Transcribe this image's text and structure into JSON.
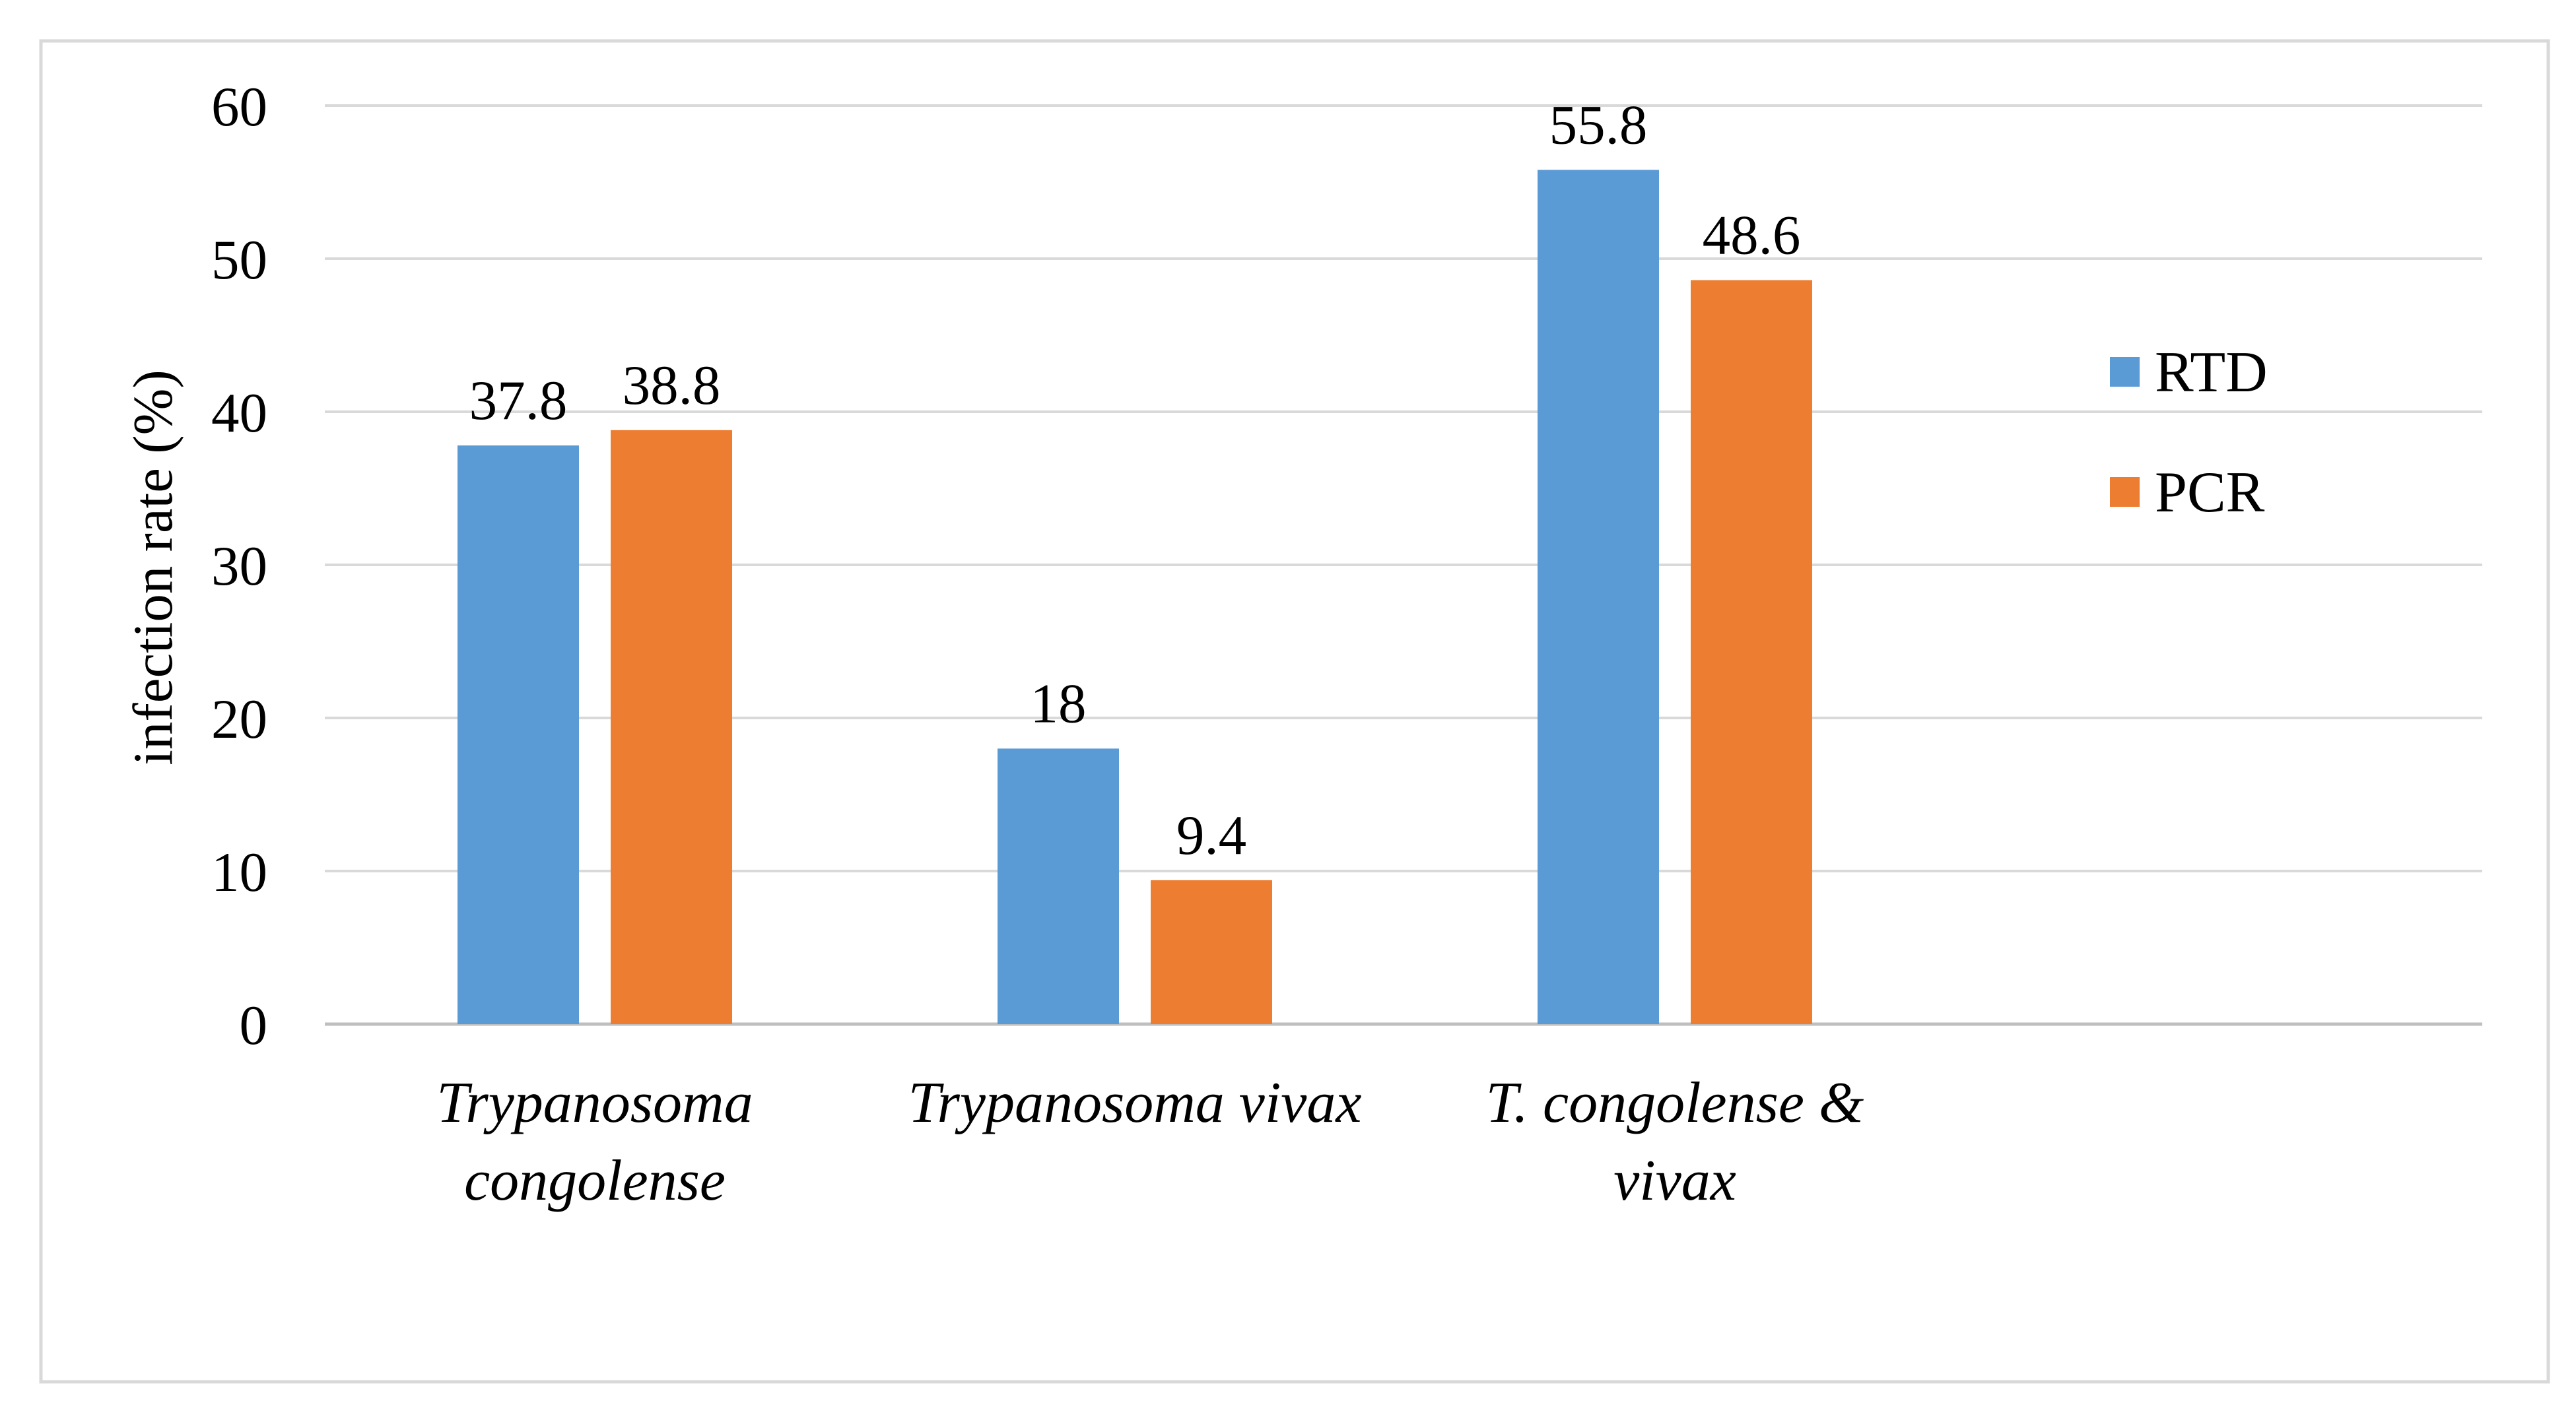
{
  "chart_data": {
    "type": "bar",
    "title": "",
    "xlabel": "",
    "ylabel": "infection rate (%)",
    "ylim": [
      0,
      60
    ],
    "yticks": [
      0,
      10,
      20,
      30,
      40,
      50,
      60
    ],
    "grid": true,
    "legend_position": "right",
    "categories": [
      [
        "Trypanosoma",
        "congolense"
      ],
      [
        "Trypanosoma vivax"
      ],
      [
        "T. congolense &",
        "vivax"
      ]
    ],
    "series": [
      {
        "name": "RTD",
        "color": "#5B9BD5",
        "values": [
          37.8,
          18,
          55.8
        ],
        "labels": [
          "37.8",
          "18",
          "55.8"
        ]
      },
      {
        "name": "PCR",
        "color": "#ED7D31",
        "values": [
          38.8,
          9.4,
          48.6
        ],
        "labels": [
          "38.8",
          "9.4",
          "48.6"
        ]
      }
    ]
  }
}
